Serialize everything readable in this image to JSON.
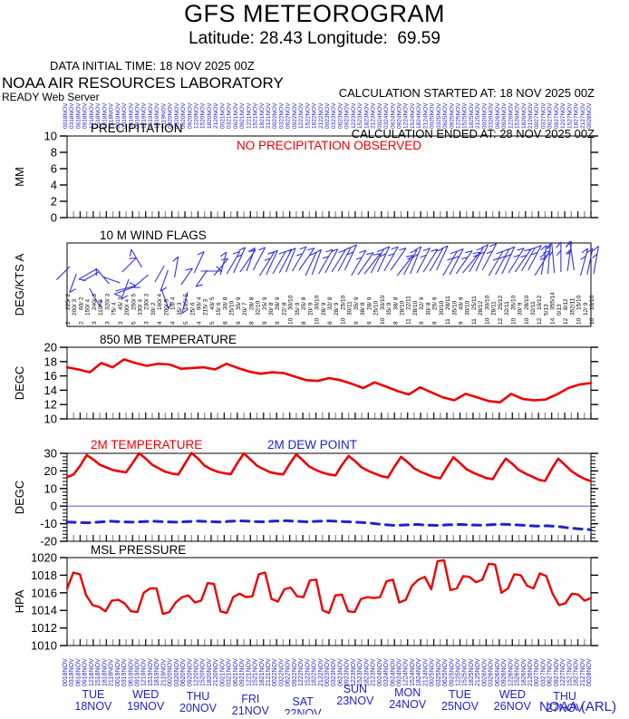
{
  "header": {
    "title": "GFS METEOROGRAM",
    "subtitle": "Latitude: 28.43 Longitude:  69.59",
    "data_initial_time": "DATA INITIAL TIME: 18 NOV 2025 00Z",
    "calc_started": "CALCULATION STARTED AT: 18 NOV 2025 00Z",
    "calc_ended": "CALCULATION ENDED AT: 28 NOV 2025 00Z",
    "org": "NOAA AIR RESOURCES LABORATORY",
    "server": "READY Web Server"
  },
  "footer": {
    "credit": "NOAA (ARL)"
  },
  "colors": {
    "line_red": "#ee0000",
    "axis_blue": "#2222cc",
    "barb_blue": "#3333dd",
    "black": "#000000",
    "tick_dark": "#222222",
    "tick_gray": "#999999",
    "zero_line_blue": "#4444cc"
  },
  "x_axis": {
    "hour_labels": [
      "00",
      "03",
      "06",
      "09",
      "12",
      "15",
      "18",
      "21"
    ],
    "rotated_dates": [
      "18NOV",
      "19NOV",
      "20NOV",
      "21NOV",
      "22NOV",
      "23NOV",
      "24NOV",
      "25NOV",
      "26NOV",
      "27NOV",
      "28NOV"
    ],
    "days": [
      {
        "weekday": "TUE",
        "date": "18NOV"
      },
      {
        "weekday": "WED",
        "date": "19NOV"
      },
      {
        "weekday": "THU",
        "date": "20NOV"
      },
      {
        "weekday": "FRI",
        "date": "21NOV"
      },
      {
        "weekday": "SAT",
        "date": "22NOV"
      },
      {
        "weekday": "SUN",
        "date": "23NOV"
      },
      {
        "weekday": "MON",
        "date": "24NOV"
      },
      {
        "weekday": "TUE",
        "date": "25NOV"
      },
      {
        "weekday": "WED",
        "date": "26NOV"
      },
      {
        "weekday": "THU",
        "date": "27NOV"
      }
    ]
  },
  "chart_data": [
    {
      "type": "annotation",
      "id": "precipitation",
      "title": "PRECIPITATION",
      "ylabel": "MM",
      "ylim": [
        0,
        10
      ],
      "yticks": [
        0,
        2,
        4,
        6,
        8,
        10
      ],
      "annotation": "NO PRECIPITATION OBSERVED",
      "values": []
    },
    {
      "type": "wind-barbs",
      "id": "wind-flags-10m",
      "title": "10 M  WIND FLAGS",
      "ylabel": "DEG/KTS  A",
      "directions_deg": [
        225,
        200,
        60,
        150,
        240,
        110,
        320,
        75,
        45,
        200,
        250,
        330,
        230,
        30,
        160,
        200,
        10,
        35,
        195,
        25,
        90,
        215,
        40,
        15,
        30,
        25,
        35,
        20,
        28,
        32,
        25,
        30,
        28,
        22,
        30,
        35,
        25,
        20,
        30,
        28,
        32,
        28,
        25,
        30,
        35,
        38,
        28,
        25,
        30,
        35,
        38,
        28,
        22,
        28,
        32,
        30,
        25,
        30,
        28,
        35,
        40,
        30,
        25,
        28,
        30,
        28,
        25,
        32,
        35,
        30,
        28,
        32,
        10,
        5,
        355,
        0,
        8,
        352,
        15,
        12,
        10
      ],
      "speeds_kts": [
        2,
        3,
        2,
        4,
        3,
        2,
        3,
        4,
        3,
        4,
        5,
        4,
        3,
        2,
        4,
        5,
        4,
        3,
        5,
        6,
        4,
        3,
        5,
        6,
        8,
        10,
        9,
        7,
        8,
        10,
        9,
        8,
        9,
        8,
        10,
        9,
        8,
        9,
        10,
        9,
        8,
        9,
        10,
        11,
        9,
        8,
        9,
        10,
        10,
        9,
        8,
        10,
        11,
        10,
        9,
        8,
        9,
        10,
        11,
        10,
        9,
        10,
        11,
        12,
        10,
        11,
        12,
        11,
        10,
        9,
        10,
        11,
        12,
        13,
        14,
        13,
        12,
        11,
        10,
        9,
        10
      ]
    },
    {
      "type": "line",
      "id": "temp-850mb",
      "title": "850 MB  TEMPERATURE",
      "ylabel": "DEGC",
      "ylim": [
        10,
        20
      ],
      "yticks": [
        10,
        12,
        14,
        16,
        18,
        20
      ],
      "values": [
        17.2,
        16.9,
        16.5,
        17.8,
        17.2,
        18.3,
        17.8,
        17.4,
        17.7,
        17.6,
        17.0,
        17.1,
        17.2,
        16.9,
        17.7,
        17.1,
        16.6,
        16.3,
        16.5,
        16.4,
        15.9,
        15.4,
        15.3,
        15.7,
        15.4,
        14.9,
        14.3,
        15.1,
        14.5,
        13.9,
        13.4,
        14.4,
        13.7,
        13.0,
        12.6,
        13.5,
        13.0,
        12.5,
        12.3,
        13.5,
        12.8,
        12.6,
        12.7,
        13.4,
        14.3,
        14.8,
        15.0
      ]
    },
    {
      "type": "multi-line",
      "id": "temp-2m",
      "title_temp": "2M TEMPERATURE",
      "title_dew": "2M  DEW POINT",
      "ylabel": "DEGC",
      "ylim": [
        -20,
        30
      ],
      "yticks": [
        -20,
        -10,
        0,
        10,
        20,
        30
      ],
      "zero_line": 0,
      "temperature_values": [
        16.5,
        18.0,
        23.0,
        29.0,
        26.5,
        23.5,
        22.0,
        20.5,
        19.8,
        19.2,
        24.5,
        30.0,
        27.0,
        23.5,
        21.5,
        19.5,
        18.5,
        18.0,
        24.0,
        30.2,
        27.0,
        23.0,
        21.0,
        19.5,
        18.7,
        18.2,
        24.5,
        30.0,
        26.5,
        23.0,
        21.0,
        19.3,
        18.5,
        18.0,
        24.0,
        29.5,
        26.0,
        22.5,
        20.5,
        19.0,
        18.0,
        17.5,
        23.5,
        28.5,
        25.5,
        22.0,
        20.0,
        18.5,
        17.0,
        16.3,
        22.5,
        28.0,
        25.0,
        21.5,
        19.5,
        18.0,
        16.5,
        15.8,
        22.0,
        27.8,
        24.5,
        21.0,
        19.0,
        17.5,
        16.0,
        15.3,
        21.5,
        27.0,
        24.0,
        20.5,
        18.5,
        16.8,
        15.0,
        14.3,
        21.0,
        27.0,
        23.5,
        20.0,
        17.5,
        15.5,
        14.2
      ],
      "dew_point_values": [
        -9.0,
        -9.3,
        -9.5,
        -9.0,
        -8.6,
        -8.9,
        -9.1,
        -8.8,
        -8.6,
        -8.9,
        -9.1,
        -8.8,
        -8.5,
        -8.8,
        -9.0,
        -8.6,
        -8.4,
        -8.7,
        -8.9,
        -8.5,
        -8.3,
        -8.6,
        -8.9,
        -8.6,
        -8.4,
        -8.7,
        -9.0,
        -9.3,
        -9.8,
        -10.5,
        -11.0,
        -10.7,
        -10.4,
        -10.8,
        -11.0,
        -10.6,
        -10.4,
        -10.7,
        -10.9,
        -10.5,
        -10.3,
        -10.6,
        -11.0,
        -11.4,
        -11.2,
        -11.6,
        -12.4,
        -13.0,
        -13.4
      ]
    },
    {
      "type": "line",
      "id": "msl-pressure",
      "title": "MSL PRESSURE",
      "ylabel": "HPA",
      "ylim": [
        1010,
        1020
      ],
      "yticks": [
        1010,
        1012,
        1014,
        1016,
        1018,
        1020
      ],
      "values": [
        1016.5,
        1018.3,
        1018.1,
        1015.7,
        1014.6,
        1014.4,
        1013.9,
        1015.1,
        1015.2,
        1014.8,
        1013.9,
        1013.8,
        1016.0,
        1016.5,
        1016.5,
        1013.6,
        1013.8,
        1014.9,
        1015.5,
        1015.7,
        1014.9,
        1015.1,
        1017.1,
        1017.0,
        1013.9,
        1013.7,
        1015.5,
        1015.9,
        1015.5,
        1015.6,
        1018.1,
        1018.3,
        1015.3,
        1015.0,
        1016.4,
        1016.6,
        1015.6,
        1015.5,
        1017.4,
        1017.5,
        1014.0,
        1013.7,
        1015.7,
        1015.8,
        1013.9,
        1013.8,
        1015.3,
        1015.5,
        1015.4,
        1015.5,
        1017.3,
        1017.5,
        1014.9,
        1015.2,
        1016.8,
        1017.5,
        1017.8,
        1016.4,
        1019.6,
        1019.7,
        1016.3,
        1016.5,
        1017.9,
        1017.8,
        1017.2,
        1017.5,
        1019.3,
        1019.2,
        1016.0,
        1016.5,
        1018.1,
        1018.0,
        1016.8,
        1016.5,
        1018.2,
        1017.9,
        1015.9,
        1014.6,
        1014.8,
        1015.9,
        1015.8,
        1015.1,
        1015.4
      ]
    }
  ]
}
